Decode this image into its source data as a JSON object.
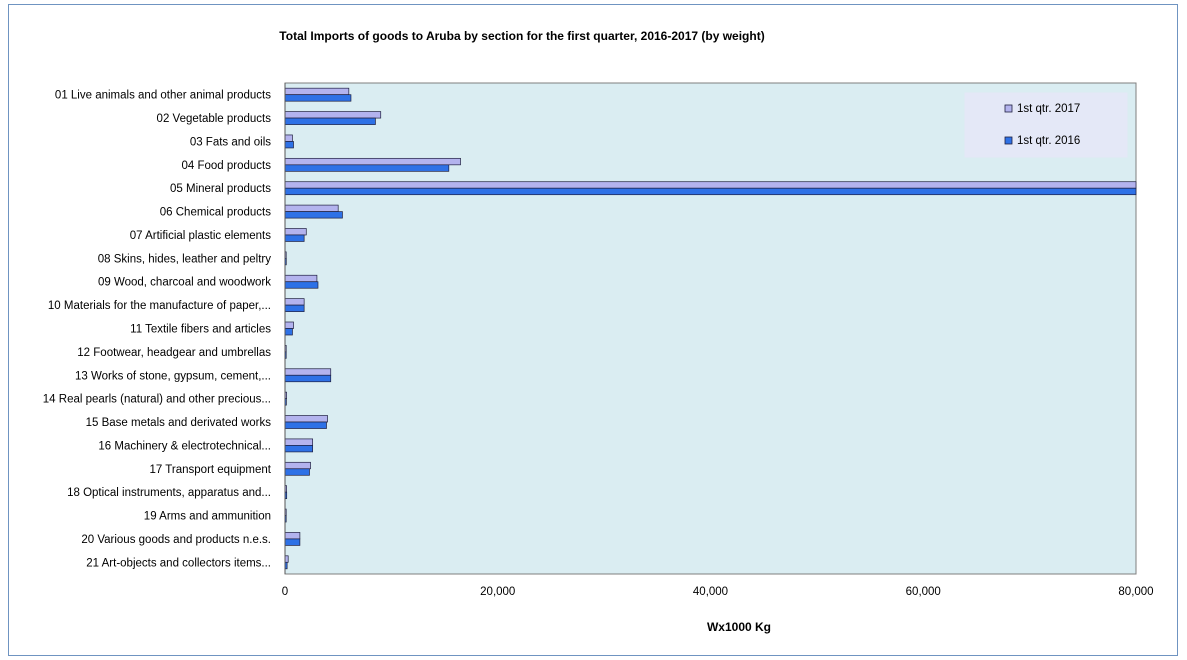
{
  "chart_data": {
    "type": "bar",
    "orientation": "horizontal",
    "title": "Total Imports of goods to Aruba by section for the first quarter,  2016-2017 (by weight)",
    "xlabel": "Wx1000 Kg",
    "ylabel": "",
    "xlim": [
      0,
      80000
    ],
    "xticks": [
      "0",
      "20,000",
      "40,000",
      "60,000",
      "80,000"
    ],
    "xtick_values": [
      0,
      20000,
      40000,
      60000,
      80000
    ],
    "legend_position": "top-right",
    "categories": [
      "01 Live animals and other animal products",
      "02 Vegetable products",
      "03 Fats and oils",
      "04 Food products",
      "05 Mineral products",
      "06 Chemical products",
      "07 Artificial plastic elements",
      "08 Skins, hides, leather and peltry",
      "09 Wood, charcoal and woodwork",
      "10 Materials for the manufacture of paper,...",
      "11 Textile fibers and articles",
      "12 Footwear, headgear and umbrellas",
      "13 Works of stone, gypsum, cement,...",
      "14 Real pearls (natural) and other precious...",
      "15 Base metals and derivated works",
      "16 Machinery & electrotechnical...",
      "17 Transport equipment",
      "18 Optical instruments, apparatus and...",
      "19 Arms and ammunition",
      "20 Various goods and products n.e.s.",
      "21 Art-objects and collectors items..."
    ],
    "series": [
      {
        "name": "1st qtr. 2017",
        "color": "#b3b3ee",
        "values": [
          6000,
          9000,
          700,
          16500,
          80000,
          5000,
          2000,
          100,
          3000,
          1800,
          800,
          100,
          4300,
          150,
          4000,
          2600,
          2400,
          150,
          100,
          1400,
          300
        ]
      },
      {
        "name": "1st qtr. 2016",
        "color": "#2e71e6",
        "values": [
          6200,
          8500,
          800,
          15400,
          80000,
          5400,
          1800,
          120,
          3100,
          1800,
          700,
          100,
          4300,
          130,
          3900,
          2600,
          2300,
          160,
          100,
          1400,
          200
        ]
      }
    ],
    "plot_background": "#daedf2",
    "legend_background": "#e4e8f7",
    "frame_border_color": "#6f94c1"
  }
}
